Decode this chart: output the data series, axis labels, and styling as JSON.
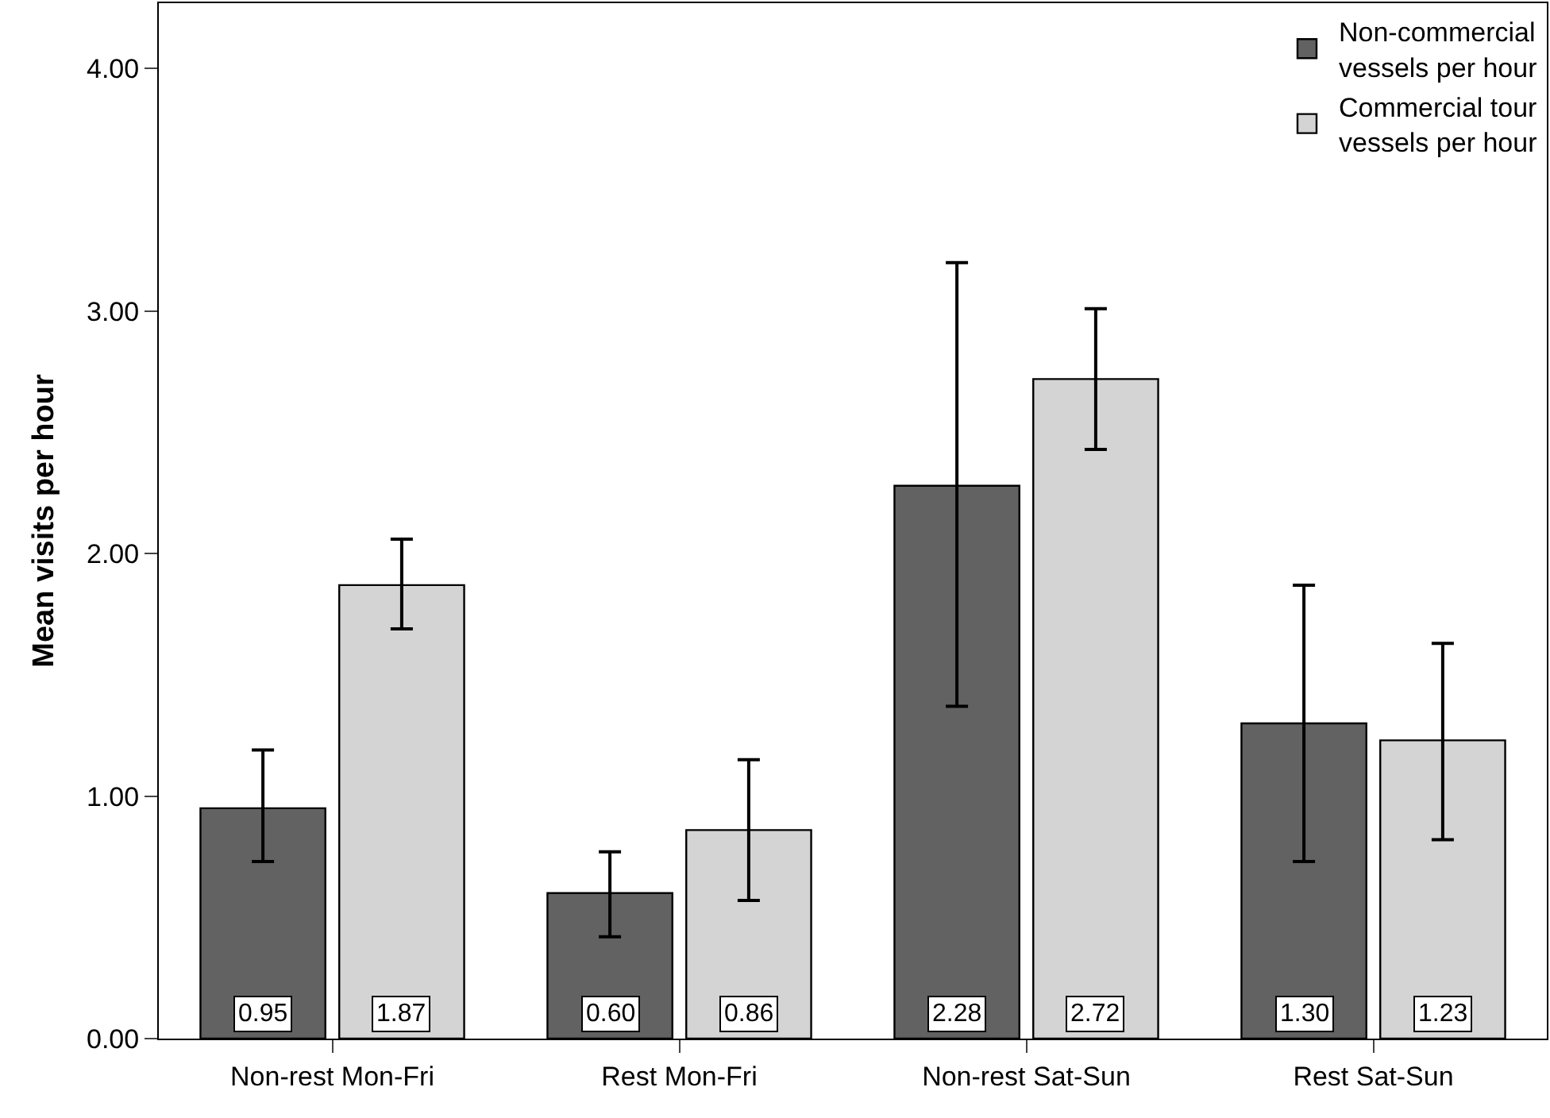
{
  "chart_data": {
    "type": "bar",
    "ylabel": "Mean visits per hour",
    "categories": [
      "Non-rest Mon-Fri",
      "Rest Mon-Fri",
      "Non-rest Sat-Sun",
      "Rest Sat-Sun"
    ],
    "series": [
      {
        "name": "Non-commercial vessels per hour",
        "color": "#626262",
        "values": [
          0.95,
          0.6,
          2.28,
          1.3
        ],
        "value_labels": [
          "0.95",
          "0.60",
          "2.28",
          "1.30"
        ],
        "errors": [
          [
            0.73,
            1.19
          ],
          [
            0.42,
            0.77
          ],
          [
            1.37,
            3.2
          ],
          [
            0.73,
            1.87
          ]
        ]
      },
      {
        "name": "Commercial tour vessels per hour",
        "color": "#d4d4d4",
        "values": [
          1.87,
          0.86,
          2.72,
          1.23
        ],
        "value_labels": [
          "1.87",
          "0.86",
          "2.72",
          "1.23"
        ],
        "errors": [
          [
            1.69,
            2.06
          ],
          [
            0.57,
            1.15
          ],
          [
            2.43,
            3.01
          ],
          [
            0.82,
            1.63
          ]
        ]
      }
    ],
    "ylim": [
      0,
      4.27
    ],
    "yticks": [
      {
        "value": 0,
        "label": "0.00"
      },
      {
        "value": 1,
        "label": "1.00"
      },
      {
        "value": 2,
        "label": "2.00"
      },
      {
        "value": 3,
        "label": "3.00"
      },
      {
        "value": 4,
        "label": "4.00"
      }
    ],
    "legend": "top right"
  }
}
